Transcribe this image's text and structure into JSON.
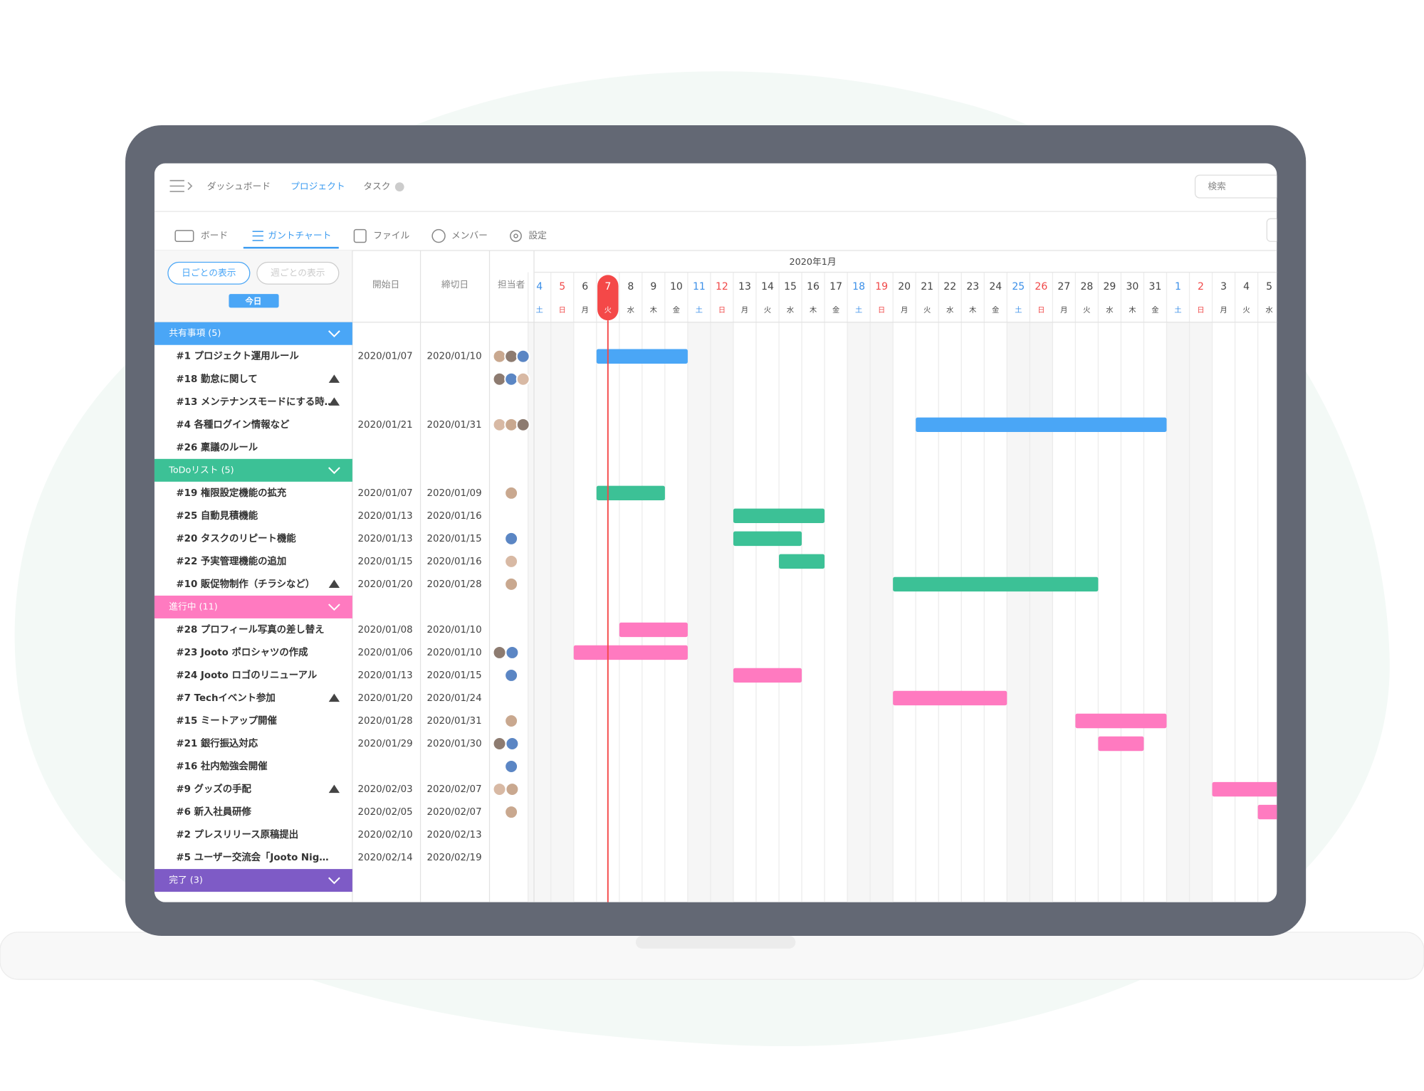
{
  "nav": {
    "items": [
      "ダッシュボード",
      "プロジェクト",
      "タスク"
    ],
    "search": "検索"
  },
  "tabs": [
    "ボード",
    "ガントチャート",
    "ファイル",
    "メンバー",
    "設定"
  ],
  "view_buttons": [
    "日ごとの表示",
    "週ごとの表示"
  ],
  "today_button": "今日",
  "columns": [
    "開始日",
    "締切日",
    "担当者"
  ],
  "calendar": {
    "month": "2020年1月",
    "today_column": 3,
    "days": [
      {
        "day": "4",
        "weekday": "土",
        "color": "#3b8fe8",
        "weekend": true
      },
      {
        "day": "5",
        "weekday": "日",
        "color": "#f04848",
        "weekend": true
      },
      {
        "day": "6",
        "weekday": "月"
      },
      {
        "day": "7",
        "weekday": "火"
      },
      {
        "day": "8",
        "weekday": "水"
      },
      {
        "day": "9",
        "weekday": "木"
      },
      {
        "day": "10",
        "weekday": "金"
      },
      {
        "day": "11",
        "weekday": "土",
        "color": "#3b8fe8",
        "weekend": true
      },
      {
        "day": "12",
        "weekday": "日",
        "color": "#f04848",
        "weekend": true
      },
      {
        "day": "13",
        "weekday": "月"
      },
      {
        "day": "14",
        "weekday": "火"
      },
      {
        "day": "15",
        "weekday": "水"
      },
      {
        "day": "16",
        "weekday": "木"
      },
      {
        "day": "17",
        "weekday": "金"
      },
      {
        "day": "18",
        "weekday": "土",
        "color": "#3b8fe8",
        "weekend": true
      },
      {
        "day": "19",
        "weekday": "日",
        "color": "#f04848",
        "weekend": true
      },
      {
        "day": "20",
        "weekday": "月"
      },
      {
        "day": "21",
        "weekday": "火"
      },
      {
        "day": "22",
        "weekday": "水"
      },
      {
        "day": "23",
        "weekday": "木"
      },
      {
        "day": "24",
        "weekday": "金"
      },
      {
        "day": "25",
        "weekday": "土",
        "color": "#3b8fe8",
        "weekend": true
      },
      {
        "day": "26",
        "weekday": "日",
        "color": "#f04848",
        "weekend": true
      },
      {
        "day": "27",
        "weekday": "月"
      },
      {
        "day": "28",
        "weekday": "火"
      },
      {
        "day": "29",
        "weekday": "水"
      },
      {
        "day": "30",
        "weekday": "木"
      },
      {
        "day": "31",
        "weekday": "金"
      },
      {
        "day": "1",
        "weekday": "土",
        "color": "#3b8fe8",
        "weekend": true
      },
      {
        "day": "2",
        "weekday": "日",
        "color": "#f04848",
        "weekend": true
      },
      {
        "day": "3",
        "weekday": "月"
      },
      {
        "day": "4",
        "weekday": "火"
      },
      {
        "day": "5",
        "weekday": "水"
      }
    ]
  },
  "groups": [
    {
      "title": "共有事項 (5)",
      "color": "#4aa6f6",
      "tasks": [
        {
          "name": "#1 プロジェクト運用ルール",
          "start": "2020/01/07",
          "end": "2020/01/10",
          "avatars": 3
        },
        {
          "name": "#18 勤怠に関して",
          "flag": true,
          "avatars": 3
        },
        {
          "name": "#13 メンテナンスモードにする時…",
          "flag": true
        },
        {
          "name": "#4 各種ログイン情報など",
          "start": "2020/01/21",
          "end": "2020/01/31",
          "avatars": 3
        },
        {
          "name": "#26 稟議のルール"
        }
      ]
    },
    {
      "title": "ToDoリスト (5)",
      "color": "#3cc196",
      "tasks": [
        {
          "name": "#19 権限設定機能の拡充",
          "start": "2020/01/07",
          "end": "2020/01/09",
          "avatars": 1
        },
        {
          "name": "#25 自動見積機能",
          "start": "2020/01/13",
          "end": "2020/01/16"
        },
        {
          "name": "#20 タスクのリピート機能",
          "start": "2020/01/13",
          "end": "2020/01/15",
          "avatars": 1
        },
        {
          "name": "#22 予実管理機能の追加",
          "start": "2020/01/15",
          "end": "2020/01/16",
          "avatars": 1
        },
        {
          "name": "#10 販促物制作（チラシなど）",
          "flag": true,
          "start": "2020/01/20",
          "end": "2020/01/28",
          "avatars": 1
        }
      ]
    },
    {
      "title": "進行中 (11)",
      "color": "#ff7ac0",
      "tasks": [
        {
          "name": "#28 プロフィール写真の差し替え",
          "start": "2020/01/08",
          "end": "2020/01/10"
        },
        {
          "name": "#23 Jooto ポロシャツの作成",
          "start": "2020/01/06",
          "end": "2020/01/10",
          "avatars": 2
        },
        {
          "name": "#24 Jooto ロゴのリニューアル",
          "start": "2020/01/13",
          "end": "2020/01/15",
          "avatars": 1
        },
        {
          "name": "#7 Techイベント参加",
          "flag": true,
          "start": "2020/01/20",
          "end": "2020/01/24"
        },
        {
          "name": "#15 ミートアップ開催",
          "start": "2020/01/28",
          "end": "2020/01/31",
          "avatars": 1
        },
        {
          "name": "#21 銀行振込対応",
          "start": "2020/01/29",
          "end": "2020/01/30",
          "avatars": 2
        },
        {
          "name": "#16 社内勉強会開催",
          "avatars": 1
        },
        {
          "name": "#9 グッズの手配",
          "flag": true,
          "start": "2020/02/03",
          "end": "2020/02/07",
          "avatars": 2
        },
        {
          "name": "#6 新入社員研修",
          "start": "2020/02/05",
          "end": "2020/02/07",
          "avatars": 1
        },
        {
          "name": "#2 プレスリリース原稿提出",
          "start": "2020/02/10",
          "end": "2020/02/13"
        },
        {
          "name": "#5 ユーザー交流会「Jooto Nig…",
          "start": "2020/02/14",
          "end": "2020/02/19"
        }
      ]
    },
    {
      "title": "完了 (3)",
      "color": "#7e5bc6",
      "tasks": []
    }
  ]
}
